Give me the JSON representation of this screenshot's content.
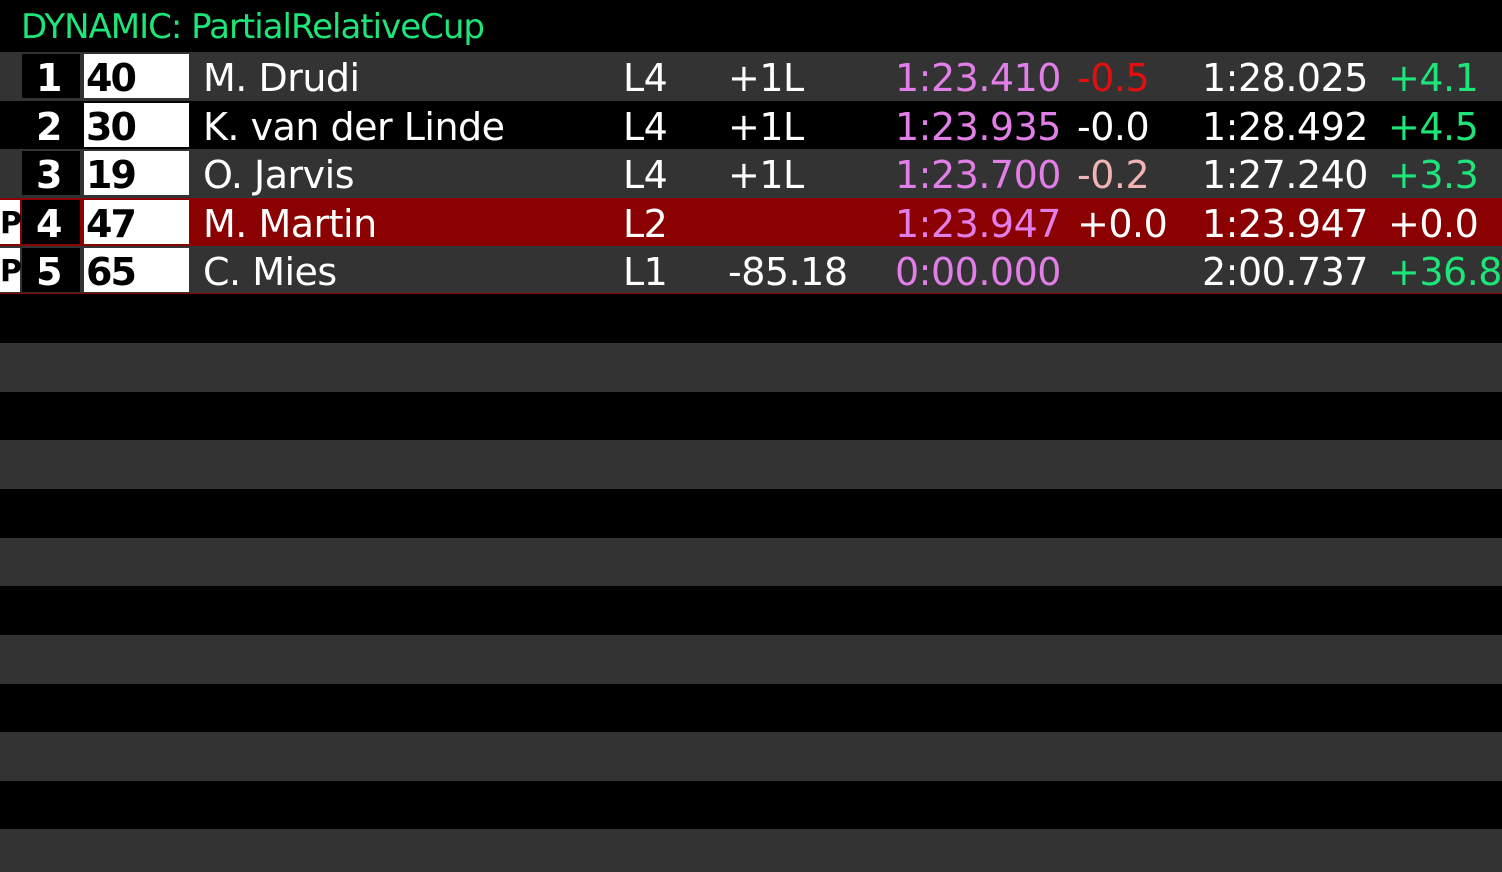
{
  "title": "DYNAMIC: PartialRelativeCup",
  "colors": {
    "title": "#1de57a",
    "purple_time": "#e27ee8",
    "delta_red": "#e01010",
    "delta_pink": "#f0b4b4",
    "delta_green": "#1de57a",
    "player_row": "#8b0000",
    "row_odd": "#333333",
    "row_even": "#000000"
  },
  "rows": [
    {
      "pit": "",
      "pos": "1",
      "num": "40",
      "name": "M. Drudi",
      "lap": "L4",
      "gap": "+1L",
      "last": "1:23.410",
      "last_delta": "-0.5",
      "last_delta_color": "delta_red",
      "best": "1:28.025",
      "best_delta": "+4.1",
      "best_delta_color": "delta_green"
    },
    {
      "pit": "",
      "pos": "2",
      "num": "30",
      "name": "K. van der Linde",
      "lap": "L4",
      "gap": "+1L",
      "last": "1:23.935",
      "last_delta": "-0.0",
      "last_delta_color": "white",
      "best": "1:28.492",
      "best_delta": "+4.5",
      "best_delta_color": "delta_green"
    },
    {
      "pit": "",
      "pos": "3",
      "num": "19",
      "name": "O. Jarvis",
      "lap": "L4",
      "gap": "+1L",
      "last": "1:23.700",
      "last_delta": "-0.2",
      "last_delta_color": "delta_pink",
      "best": "1:27.240",
      "best_delta": "+3.3",
      "best_delta_color": "delta_green"
    },
    {
      "pit": "P",
      "pos": "4",
      "num": "47",
      "name": "M. Martin",
      "lap": "L2",
      "gap": "",
      "last": "1:23.947",
      "last_delta": "+0.0",
      "last_delta_color": "white",
      "best": "1:23.947",
      "best_delta": "+0.0",
      "best_delta_color": "white"
    },
    {
      "pit": "P",
      "pos": "5",
      "num": "65",
      "name": "C. Mies",
      "lap": "L1",
      "gap": "-85.18",
      "last": "0:00.000",
      "last_delta": "",
      "last_delta_color": "white",
      "best": "2:00.737",
      "best_delta": "+36.8",
      "best_delta_color": "delta_green"
    }
  ]
}
